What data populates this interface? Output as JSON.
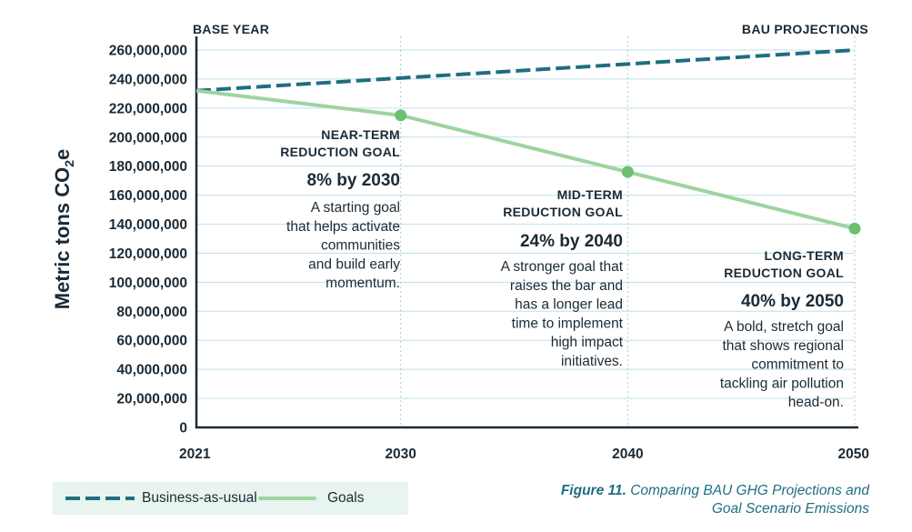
{
  "chart_data": {
    "type": "line",
    "ylabel": "Metric tons CO",
    "ylabel_sub": "2",
    "ylabel_suffix": "e",
    "x": [
      2021,
      2030,
      2040,
      2050
    ],
    "x_tick_labels": [
      "2021",
      "2030",
      "2040",
      "2050"
    ],
    "xlim": [
      2021,
      2050
    ],
    "ylim": [
      0,
      260000000
    ],
    "y_tick_labels": [
      "0",
      "20,000,000",
      "40,000,000",
      "60,000,000",
      "80,000,000",
      "100,000,000",
      "120,000,000",
      "140,000,000",
      "160,000,000",
      "180,000,000",
      "200,000,000",
      "220,000,000",
      "240,000,000",
      "260,000,000"
    ],
    "y_ticks": [
      0,
      20000000,
      40000000,
      60000000,
      80000000,
      100000000,
      120000000,
      140000000,
      160000000,
      180000000,
      200000000,
      220000000,
      240000000,
      260000000
    ],
    "grid": true,
    "series": [
      {
        "name": "Business-as-usual",
        "style": "dashed",
        "color": "#1f6e80",
        "x": [
          2021,
          2050
        ],
        "values": [
          232000000,
          260000000
        ]
      },
      {
        "name": "Goals",
        "style": "solid",
        "color": "#9ed3a0",
        "marker_color": "#6cbf6f",
        "x": [
          2021,
          2030,
          2040,
          2050
        ],
        "values": [
          232000000,
          215000000,
          176000000,
          137000000
        ]
      }
    ],
    "corner_labels": {
      "left": "BASE YEAR",
      "right": "BAU PROJECTIONS"
    },
    "annotations": [
      {
        "x": 2030,
        "head": [
          "NEAR-TERM",
          "REDUCTION GOAL"
        ],
        "pct": "8% by 2030",
        "body": [
          "A starting goal",
          "that helps activate",
          "communities",
          "and build early",
          "momentum."
        ]
      },
      {
        "x": 2040,
        "head": [
          "MID-TERM",
          "REDUCTION GOAL"
        ],
        "pct": "24% by 2040",
        "body": [
          "A stronger goal that",
          "raises the bar and",
          "has a longer lead",
          "time to implement",
          "high impact",
          "initiatives."
        ]
      },
      {
        "x": 2050,
        "head": [
          "LONG-TERM",
          "REDUCTION GOAL"
        ],
        "pct": "40% by 2050",
        "body": [
          "A bold, stretch goal",
          "that shows regional",
          "commitment to",
          "tackling air pollution",
          "head-on."
        ]
      }
    ],
    "legend": [
      {
        "label": "Business-as-usual",
        "style": "dashed"
      },
      {
        "label": "Goals",
        "style": "solid"
      }
    ]
  },
  "caption": {
    "figure": "Figure 11.",
    "line1": "Comparing BAU GHG Projections and",
    "line2": "Goal Scenario Emissions"
  }
}
